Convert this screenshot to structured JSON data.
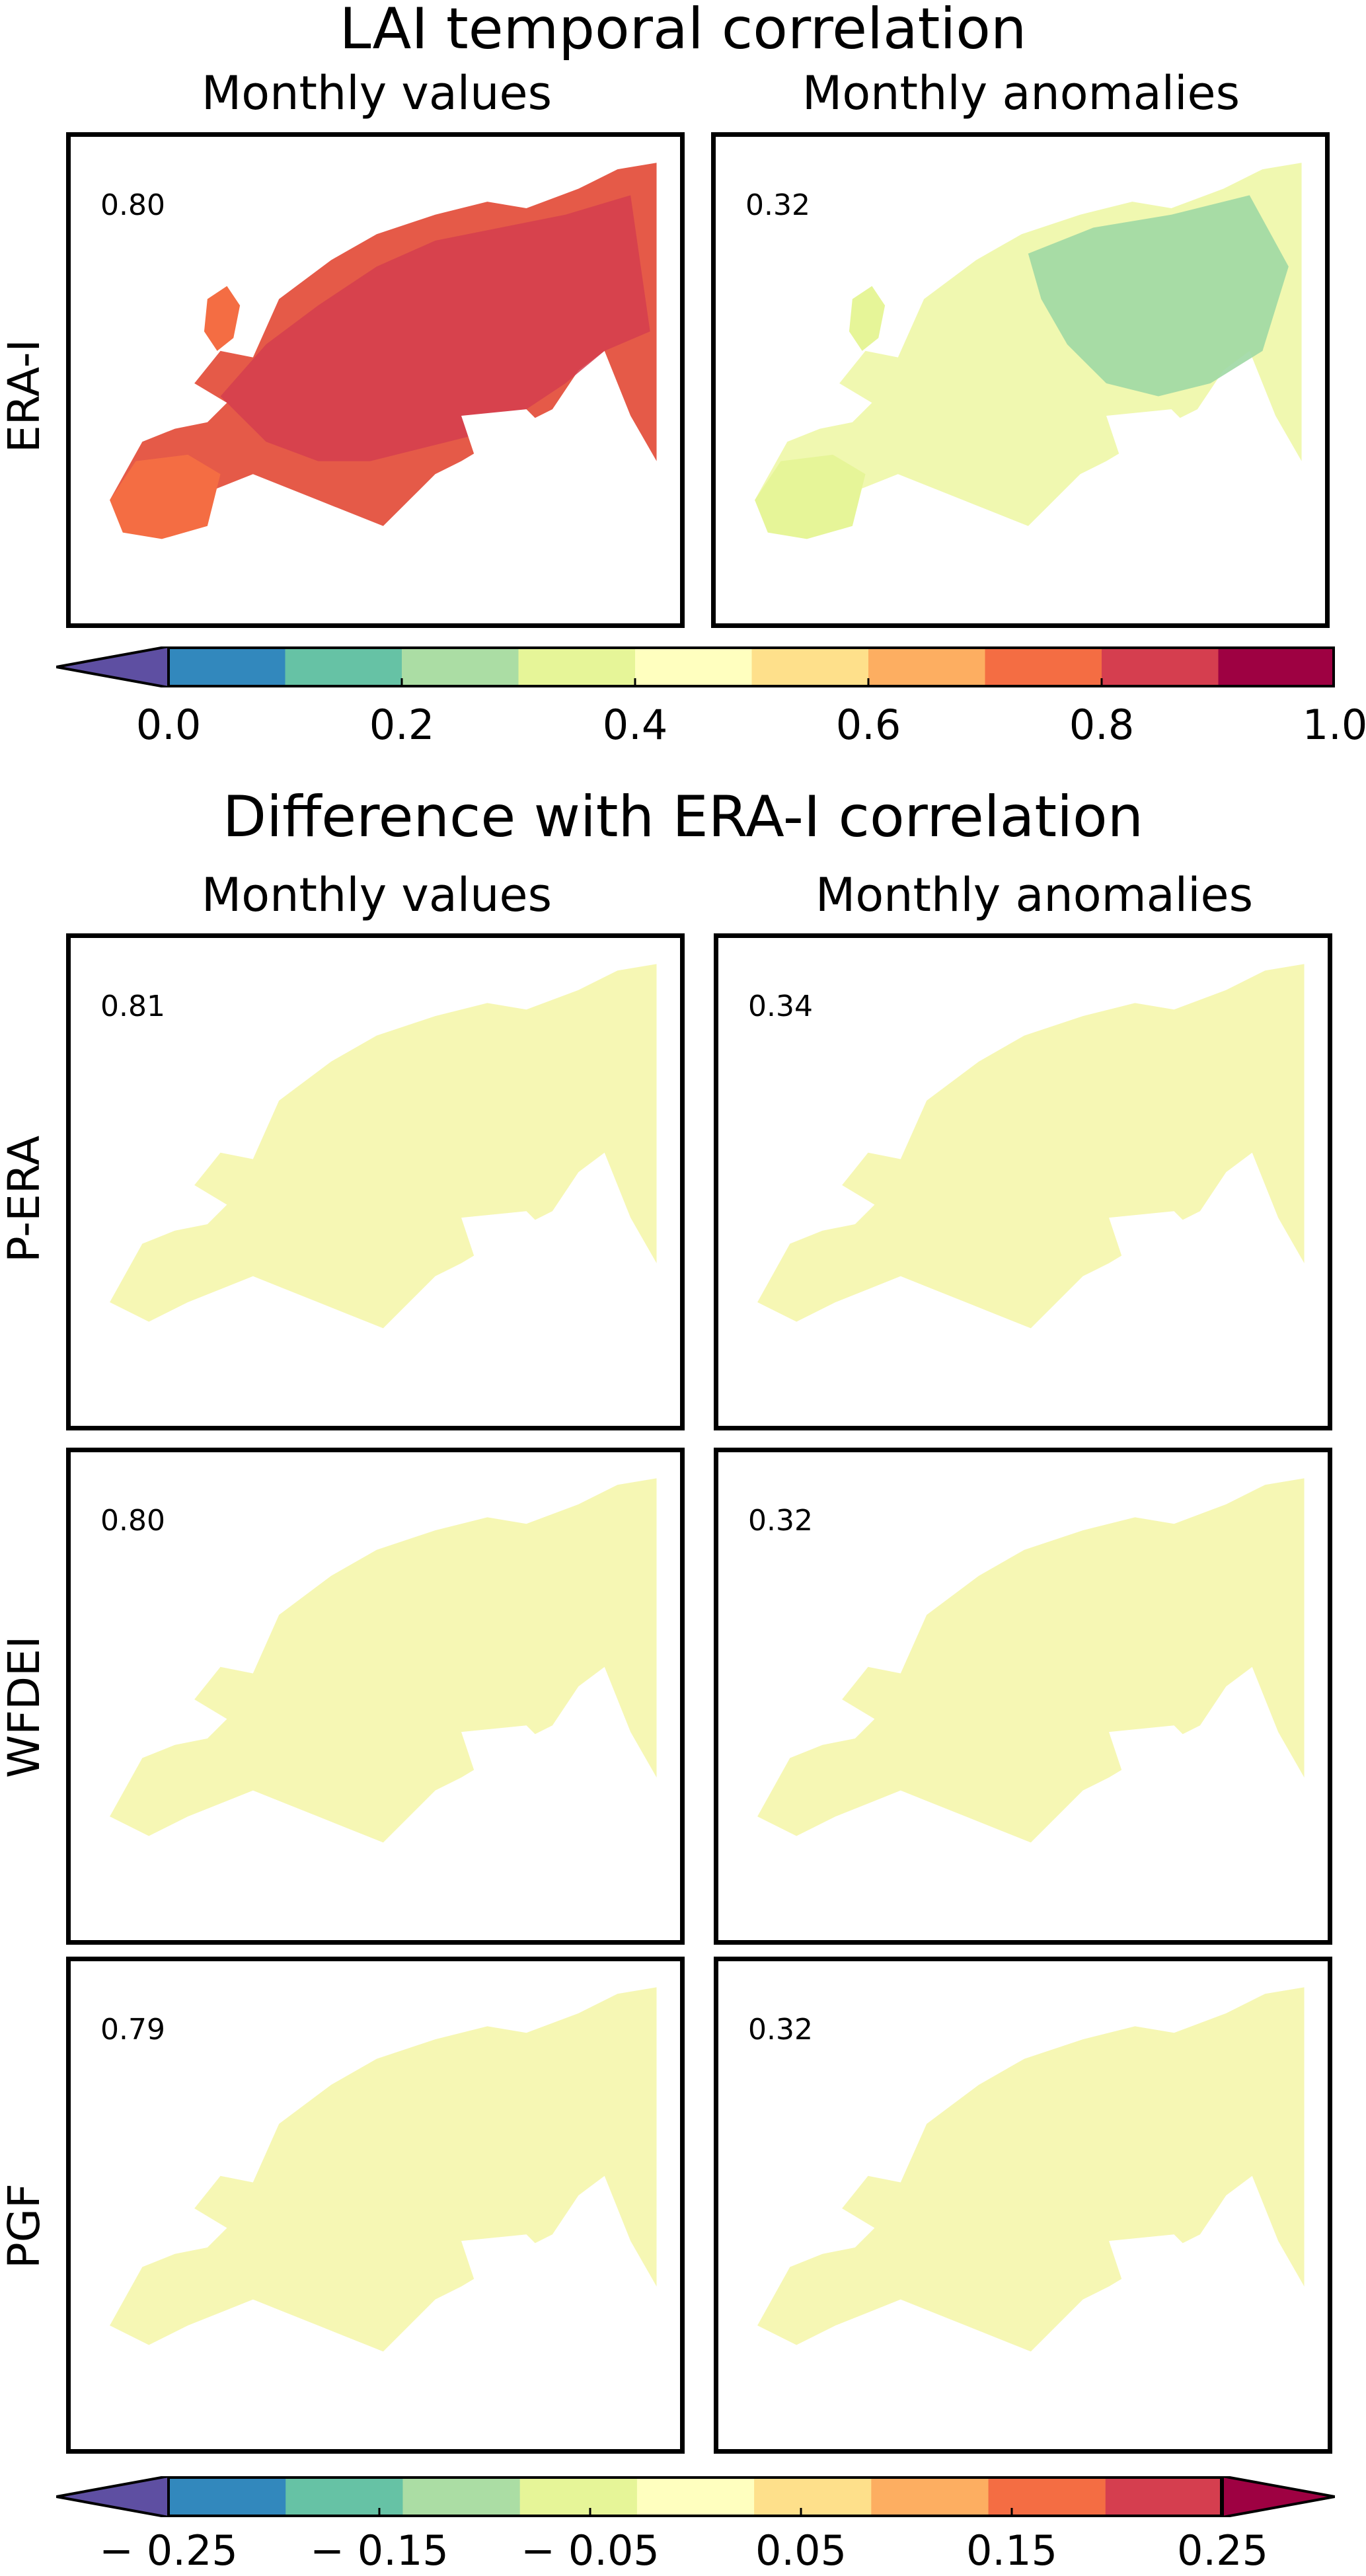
{
  "chart_data": [
    {
      "type": "heatmap",
      "title": "LAI temporal correlation",
      "columns": [
        "Monthly values",
        "Monthly anomalies"
      ],
      "rows": [
        "ERA-I"
      ],
      "panels": [
        {
          "row": "ERA-I",
          "column": "Monthly values",
          "value_label": "0.80"
        },
        {
          "row": "ERA-I",
          "column": "Monthly anomalies",
          "value_label": "0.32"
        }
      ],
      "colorbar": {
        "ticks": [
          "0.0",
          "0.2",
          "0.4",
          "0.6",
          "0.8",
          "1.0"
        ],
        "range": [
          0.0,
          1.0
        ],
        "extend": "min",
        "colors": [
          "#5e4fa2",
          "#3288bd",
          "#66c2a5",
          "#abdda4",
          "#e6f598",
          "#ffffbf",
          "#fee08b",
          "#fdae61",
          "#f46d43",
          "#d53e4f",
          "#9e0142"
        ]
      }
    },
    {
      "type": "heatmap",
      "title": "Difference with ERA-I correlation",
      "columns": [
        "Monthly values",
        "Monthly anomalies"
      ],
      "rows": [
        "P-ERA",
        "WFDEI",
        "PGF"
      ],
      "panels": [
        {
          "row": "P-ERA",
          "column": "Monthly values",
          "value_label": "0.81"
        },
        {
          "row": "P-ERA",
          "column": "Monthly anomalies",
          "value_label": "0.34"
        },
        {
          "row": "WFDEI",
          "column": "Monthly values",
          "value_label": "0.80"
        },
        {
          "row": "WFDEI",
          "column": "Monthly anomalies",
          "value_label": "0.32"
        },
        {
          "row": "PGF",
          "column": "Monthly values",
          "value_label": "0.79"
        },
        {
          "row": "PGF",
          "column": "Monthly anomalies",
          "value_label": "0.32"
        }
      ],
      "colorbar": {
        "ticks": [
          "− 0.25",
          "− 0.15",
          "− 0.05",
          "0.05",
          "0.15",
          "0.25"
        ],
        "range": [
          -0.25,
          0.25
        ],
        "extend": "both",
        "colors": [
          "#5e4fa2",
          "#3288bd",
          "#66c2a5",
          "#abdda4",
          "#e6f598",
          "#ffffbf",
          "#fee08b",
          "#fdae61",
          "#f46d43",
          "#d53e4f",
          "#9e0142"
        ]
      }
    }
  ]
}
